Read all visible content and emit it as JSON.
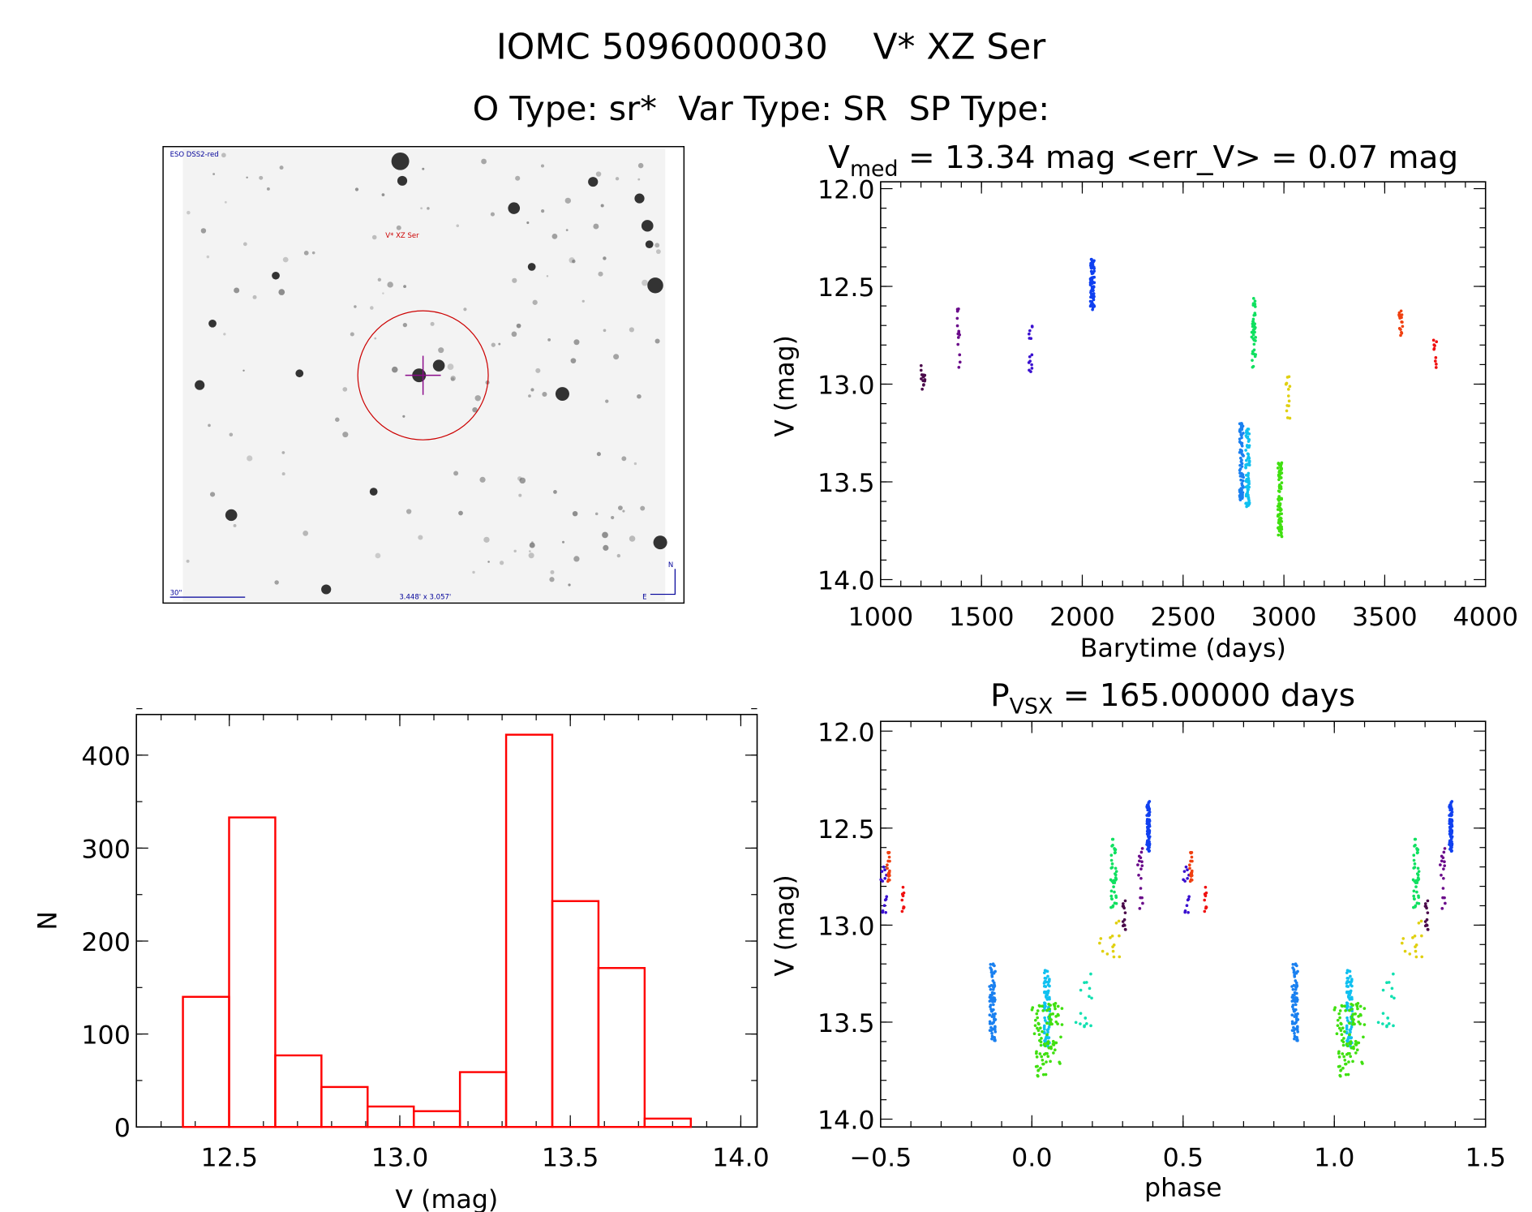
{
  "header": {
    "title": "IOMC 5096000030    V* XZ Ser",
    "subtitle": "O Type: sr*  Var Type: SR  SP Type:"
  },
  "image_panel": {
    "survey_label": "ESO DSS2-red",
    "target_label": "V* XZ Ser",
    "scale_label": "30\"",
    "fov_label": "3.448' x 3.057'",
    "north_label": "N",
    "east_label": "E",
    "colors": {
      "circle": "#cc0000",
      "crosshair": "#8a0a8a",
      "labels": "#000099"
    }
  },
  "chart_data": [
    {
      "id": "lightcurve",
      "type": "scatter",
      "title_main": "V",
      "title_sub": "med",
      "title_rest": " = 13.34 mag <err_V> = 0.07 mag",
      "xlabel": "Barytime (days)",
      "ylabel": "V (mag)",
      "xlim": [
        1000,
        4000
      ],
      "ylim": [
        14.0,
        12.0
      ],
      "y_inverted": true,
      "xticks": [
        "1000",
        "1500",
        "2000",
        "2500",
        "3000",
        "3500",
        "4000"
      ],
      "yticks": [
        "12.0",
        "12.5",
        "13.0",
        "13.5",
        "14.0"
      ],
      "groups": [
        {
          "t": 1210,
          "vmin": 12.85,
          "vmax": 13.03,
          "n": 14,
          "phase": [
            0.3,
            0.31
          ],
          "color": "#4b0a4b"
        },
        {
          "t": 1385,
          "vmin": 12.6,
          "vmax": 12.92,
          "n": 16,
          "phase": [
            0.35,
            0.37
          ],
          "color": "#6a0a8a"
        },
        {
          "t": 1745,
          "vmin": 12.7,
          "vmax": 12.94,
          "n": 14,
          "phase": [
            0.5,
            0.52
          ],
          "color": "#3a10d0"
        },
        {
          "t": 2050,
          "vmin": 12.36,
          "vmax": 12.62,
          "n": 80,
          "phase": [
            0.38,
            0.39
          ],
          "color": "#1040f0"
        },
        {
          "t": 2790,
          "vmin": 13.2,
          "vmax": 13.6,
          "n": 80,
          "phase": [
            0.86,
            0.88
          ],
          "color": "#1a80f0"
        },
        {
          "t": 2820,
          "vmin": 13.23,
          "vmax": 13.63,
          "n": 80,
          "phase": [
            0.04,
            0.06
          ],
          "color": "#10c0f0"
        },
        {
          "t": 2850,
          "vmin": 12.55,
          "vmax": 12.92,
          "n": 40,
          "phase": [
            0.26,
            0.28
          ],
          "color": "#10e060"
        },
        {
          "t": 2980,
          "vmin": 13.4,
          "vmax": 13.78,
          "n": 90,
          "phase": [
            0.0,
            0.1
          ],
          "color": "#40e010"
        },
        {
          "t": 3020,
          "vmin": 12.95,
          "vmax": 13.18,
          "n": 14,
          "phase": [
            0.22,
            0.29
          ],
          "color": "#e0d010"
        },
        {
          "t": 3580,
          "vmin": 12.62,
          "vmax": 12.78,
          "n": 18,
          "phase": [
            0.52,
            0.53
          ],
          "color": "#f04010"
        },
        {
          "t": 3750,
          "vmin": 12.77,
          "vmax": 12.93,
          "n": 10,
          "phase": [
            0.57,
            0.58
          ],
          "color": "#f01010"
        }
      ],
      "extra_phase_points": [
        {
          "phase": [
            0.14,
            0.2
          ],
          "vmin": 13.25,
          "vmax": 13.55,
          "n": 16,
          "color": "#10e0b0"
        }
      ]
    },
    {
      "id": "histogram",
      "type": "bar",
      "xlabel": "V (mag)",
      "ylabel": "N",
      "xlim": [
        12.23,
        14.05
      ],
      "ylim": [
        0,
        444
      ],
      "xticks": [
        "12.5",
        "13.0",
        "13.5",
        "14.0"
      ],
      "yticks": [
        "0",
        "100",
        "200",
        "300",
        "400"
      ],
      "bin_start": 12.364,
      "bin_width": 0.1354,
      "values": [
        140,
        333,
        77,
        43,
        22,
        17,
        59,
        422,
        243,
        171,
        9
      ],
      "color": "#ff0000"
    },
    {
      "id": "phased",
      "type": "scatter",
      "title_main": "P",
      "title_sub": "VSX",
      "title_rest": " = 165.00000 days",
      "xlabel": "phase",
      "ylabel": "V (mag)",
      "xlim": [
        -0.5,
        1.5
      ],
      "ylim": [
        14.0,
        12.0
      ],
      "y_inverted": true,
      "xticks": [
        "−0.5",
        "0.0",
        "0.5",
        "1.0",
        "1.5"
      ],
      "yticks": [
        "12.0",
        "12.5",
        "13.0",
        "13.5",
        "14.0"
      ]
    }
  ]
}
